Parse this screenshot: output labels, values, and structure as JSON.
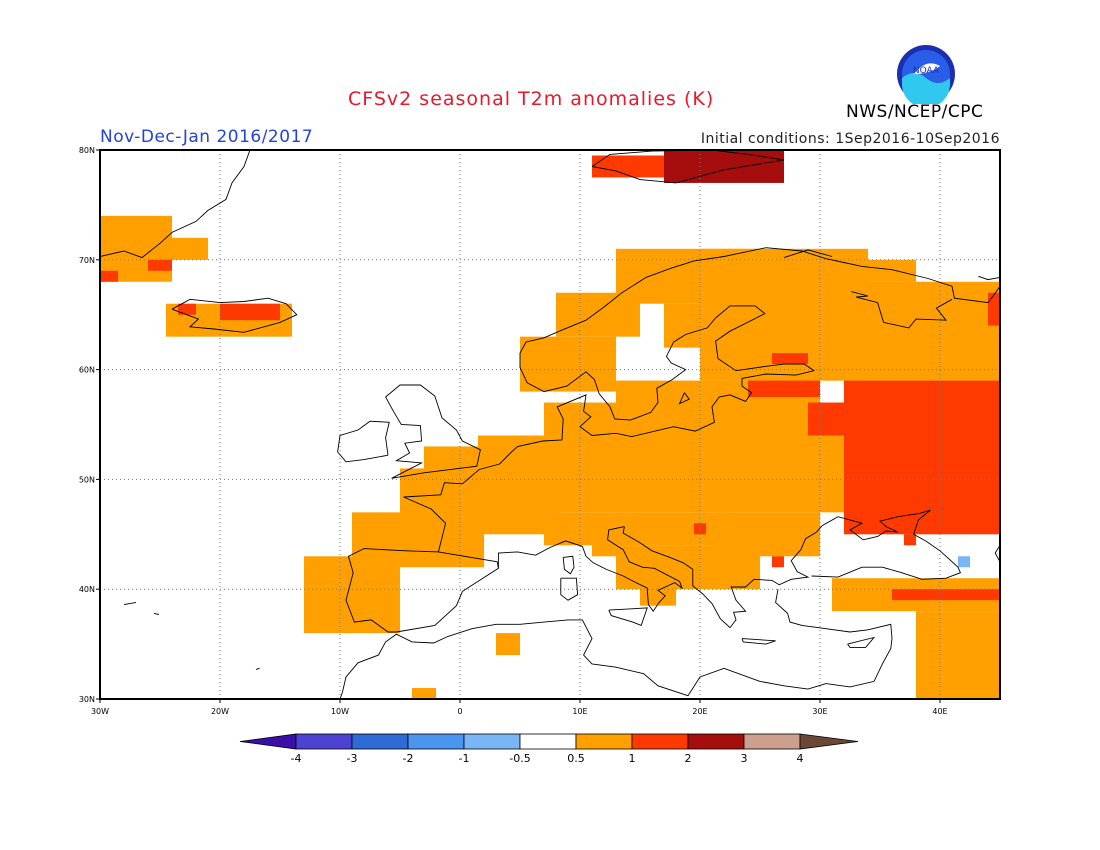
{
  "header": {
    "title": "CFSv2 seasonal T2m anomalies (K)",
    "org": "NWS/NCEP/CPC",
    "period": "Nov-Dec-Jan 2016/2017",
    "initial_conditions": "Initial conditions: 1Sep2016-10Sep2016",
    "logo_text": "NOAA"
  },
  "map": {
    "lon_range": [
      -30,
      45
    ],
    "lat_range": [
      30,
      80
    ],
    "lon_ticks": [
      {
        "v": -30,
        "label": "30W"
      },
      {
        "v": -20,
        "label": "20W"
      },
      {
        "v": -10,
        "label": "10W"
      },
      {
        "v": 0,
        "label": "0"
      },
      {
        "v": 10,
        "label": "10E"
      },
      {
        "v": 20,
        "label": "20E"
      },
      {
        "v": 30,
        "label": "30E"
      },
      {
        "v": 40,
        "label": "40E"
      }
    ],
    "lat_ticks": [
      {
        "v": 30,
        "label": "30N"
      },
      {
        "v": 40,
        "label": "40N"
      },
      {
        "v": 50,
        "label": "50N"
      },
      {
        "v": 60,
        "label": "60N"
      },
      {
        "v": 70,
        "label": "70N"
      },
      {
        "v": 80,
        "label": "80N"
      }
    ],
    "anomaly_regions": [
      {
        "level": "0.5-1",
        "lon": [
          -30,
          -24
        ],
        "lat": [
          68,
          74
        ]
      },
      {
        "level": "0.5-1",
        "lon": [
          -24,
          -21
        ],
        "lat": [
          70,
          72
        ]
      },
      {
        "level": "1-2",
        "lon": [
          -30,
          -28.5
        ],
        "lat": [
          68,
          69
        ]
      },
      {
        "level": "1-2",
        "lon": [
          -26,
          -24
        ],
        "lat": [
          69,
          70
        ]
      },
      {
        "level": "0.5-1",
        "lon": [
          -24.5,
          -14
        ],
        "lat": [
          63,
          66
        ]
      },
      {
        "level": "1-2",
        "lon": [
          -20,
          -15
        ],
        "lat": [
          64.5,
          66
        ]
      },
      {
        "level": "1-2",
        "lon": [
          -23.5,
          -22
        ],
        "lat": [
          65,
          66
        ]
      },
      {
        "level": "1-2",
        "lon": [
          11,
          17
        ],
        "lat": [
          77.5,
          79.5
        ]
      },
      {
        "level": "2-3",
        "lon": [
          17,
          27
        ],
        "lat": [
          77,
          80
        ]
      },
      {
        "level": "0.5-1",
        "lon": [
          -13,
          -5
        ],
        "lat": [
          36,
          43
        ]
      },
      {
        "level": "0.5-1",
        "lon": [
          -9,
          2
        ],
        "lat": [
          42,
          47
        ]
      },
      {
        "level": "0.5-1",
        "lon": [
          -5,
          8
        ],
        "lat": [
          45,
          51
        ]
      },
      {
        "level": "0.5-1",
        "lon": [
          -3,
          1.5
        ],
        "lat": [
          49.5,
          53
        ]
      },
      {
        "level": "0.5-1",
        "lon": [
          1.5,
          35
        ],
        "lat": [
          47,
          54
        ]
      },
      {
        "level": "0.5-1",
        "lon": [
          7,
          22
        ],
        "lat": [
          44,
          47
        ]
      },
      {
        "level": "0.5-1",
        "lon": [
          13,
          19
        ],
        "lat": [
          40,
          44
        ]
      },
      {
        "level": "0.5-1",
        "lon": [
          19,
          25
        ],
        "lat": [
          40,
          44
        ]
      },
      {
        "level": "0.5-1",
        "lon": [
          15,
          18
        ],
        "lat": [
          38.5,
          40.5
        ]
      },
      {
        "level": "0.5-1",
        "lon": [
          11,
          13
        ],
        "lat": [
          43,
          45
        ]
      },
      {
        "level": "0.5-1",
        "lon": [
          21,
          30
        ],
        "lat": [
          43,
          47
        ]
      },
      {
        "level": "0.5-1",
        "lon": [
          13,
          30
        ],
        "lat": [
          54,
          59
        ]
      },
      {
        "level": "0.5-1",
        "lon": [
          7,
          13
        ],
        "lat": [
          54,
          57
        ]
      },
      {
        "level": "0.5-1",
        "lon": [
          5,
          13
        ],
        "lat": [
          58,
          63
        ]
      },
      {
        "level": "0.5-1",
        "lon": [
          8,
          15
        ],
        "lat": [
          63,
          67
        ]
      },
      {
        "level": "0.5-1",
        "lon": [
          13,
          25
        ],
        "lat": [
          66,
          71
        ]
      },
      {
        "level": "0.5-1",
        "lon": [
          17,
          24
        ],
        "lat": [
          62,
          66
        ]
      },
      {
        "level": "0.5-1",
        "lon": [
          20,
          34
        ],
        "lat": [
          59,
          71
        ]
      },
      {
        "level": "0.5-1",
        "lon": [
          30,
          45
        ],
        "lat": [
          59,
          68
        ]
      },
      {
        "level": "0.5-1",
        "lon": [
          32,
          38
        ],
        "lat": [
          68,
          70
        ]
      },
      {
        "level": "0.5-1",
        "lon": [
          31,
          45
        ],
        "lat": [
          38,
          41
        ]
      },
      {
        "level": "0.5-1",
        "lon": [
          38,
          45
        ],
        "lat": [
          30,
          38
        ]
      },
      {
        "level": "0.5-1",
        "lon": [
          3,
          5
        ],
        "lat": [
          34,
          36
        ]
      },
      {
        "level": "0.5-1",
        "lon": [
          -4,
          -2
        ],
        "lat": [
          30,
          31
        ]
      },
      {
        "level": "1-2",
        "lon": [
          32,
          45
        ],
        "lat": [
          45,
          59
        ]
      },
      {
        "level": "1-2",
        "lon": [
          29,
          32
        ],
        "lat": [
          54,
          57
        ]
      },
      {
        "level": "1-2",
        "lon": [
          24,
          30
        ],
        "lat": [
          57.5,
          59
        ]
      },
      {
        "level": "1-2",
        "lon": [
          36,
          45
        ],
        "lat": [
          39,
          40
        ]
      },
      {
        "level": "1-2",
        "lon": [
          44,
          45
        ],
        "lat": [
          64,
          67
        ]
      },
      {
        "level": "1-2",
        "lon": [
          26,
          29
        ],
        "lat": [
          60.5,
          61.5
        ]
      },
      {
        "level": "1-2",
        "lon": [
          37,
          38
        ],
        "lat": [
          44,
          45
        ]
      },
      {
        "level": "1-2",
        "lon": [
          19.5,
          20.5
        ],
        "lat": [
          45,
          46
        ]
      },
      {
        "level": "1-2",
        "lon": [
          26,
          27
        ],
        "lat": [
          42,
          43
        ]
      },
      {
        "level": "-0.5--1",
        "lon": [
          41.5,
          42.5
        ],
        "lat": [
          42,
          43
        ]
      }
    ]
  },
  "colorbar": {
    "labels": [
      "-4",
      "-3",
      "-2",
      "-1",
      "-0.5",
      "0.5",
      "1",
      "2",
      "3",
      "4"
    ],
    "colors": [
      "#3a0fa8",
      "#4c43d3",
      "#2f6bd6",
      "#4a95ee",
      "#7ab6f5",
      "#ffffff",
      "#ffa000",
      "#ff3a00",
      "#a60e0e",
      "#cca08c",
      "#6b4836"
    ]
  }
}
